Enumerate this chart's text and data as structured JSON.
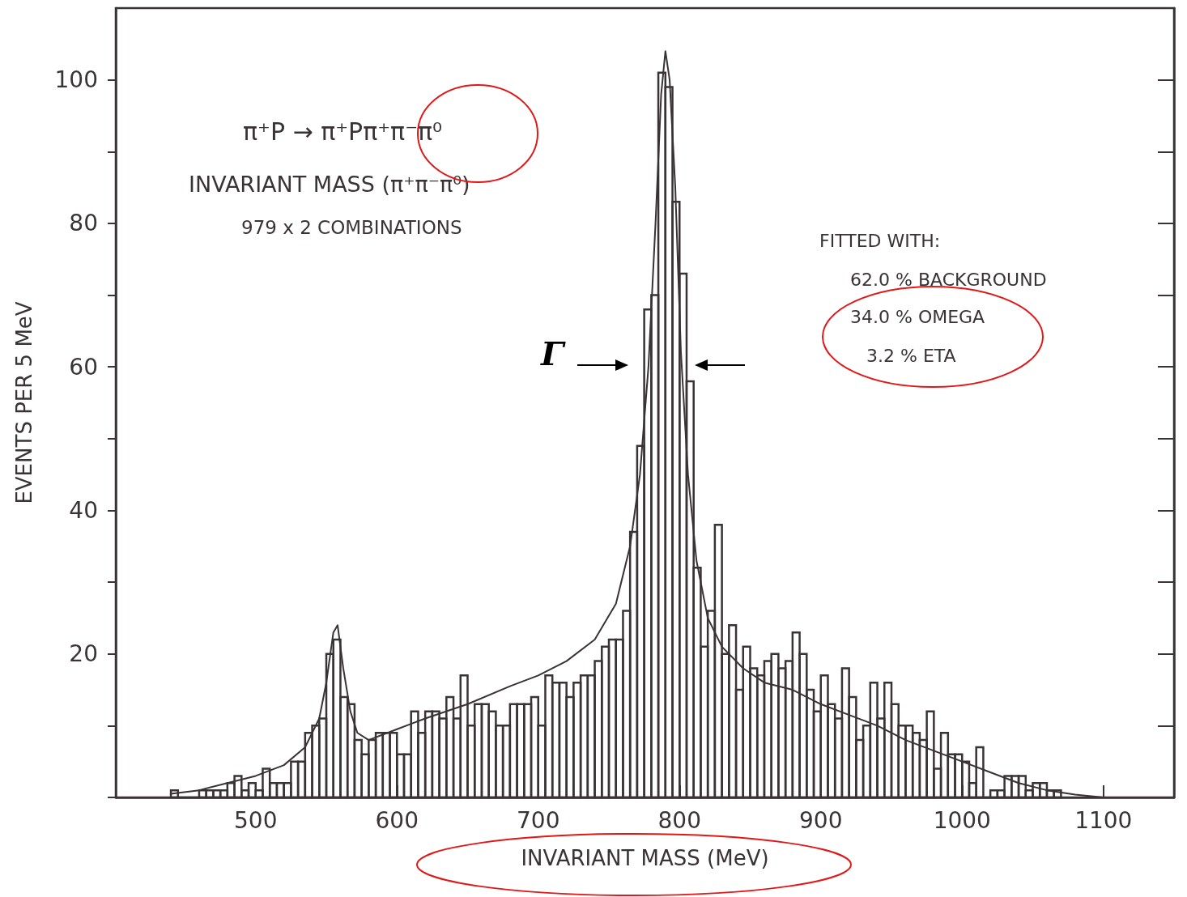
{
  "chart_data": {
    "type": "histogram",
    "xlabel": "INVARIANT MASS (MeV)",
    "ylabel": "EVENTS PER 5 MeV",
    "annotations": [
      "π⁺P → π⁺Pπ⁺π⁻π⁰",
      "INVARIANT MASS (π⁺π⁻π⁰)",
      "979 x 2 COMBINATIONS",
      "FITTED WITH:",
      "62.0 % BACKGROUND",
      "34.0 % OMEGA",
      "3.2 % ETA",
      "Γ"
    ],
    "xlim": [
      401,
      1150
    ],
    "xticks": [
      500,
      600,
      700,
      800,
      900,
      1000,
      1100
    ],
    "ylim": [
      0,
      110
    ],
    "yticks": [
      {
        "value": 0,
        "label": null
      },
      {
        "value": 10,
        "label": null
      },
      20,
      {
        "value": 30,
        "label": null
      },
      40,
      {
        "value": 50,
        "label": null
      },
      60,
      {
        "value": 70,
        "label": null
      },
      80,
      {
        "value": 90,
        "label": null
      },
      100
    ],
    "grid": false,
    "series": [
      {
        "color": "#3a3335",
        "bins": [
          440,
          445,
          450,
          455,
          460,
          465,
          470,
          475,
          480,
          485,
          490,
          495,
          500,
          505,
          510,
          515,
          520,
          525,
          530,
          535,
          540,
          545,
          550,
          555,
          560,
          565,
          570,
          575,
          580,
          585,
          590,
          595,
          600,
          605,
          610,
          615,
          620,
          625,
          630,
          635,
          640,
          645,
          650,
          655,
          660,
          665,
          670,
          675,
          680,
          685,
          690,
          695,
          700,
          705,
          710,
          715,
          720,
          725,
          730,
          735,
          740,
          745,
          750,
          755,
          760,
          765,
          770,
          775,
          780,
          785,
          790,
          795,
          800,
          805,
          810,
          815,
          820,
          825,
          830,
          835,
          840,
          845,
          850,
          855,
          860,
          865,
          870,
          875,
          880,
          885,
          890,
          895,
          900,
          905,
          910,
          915,
          920,
          925,
          930,
          935,
          940,
          945,
          950,
          955,
          960,
          965,
          970,
          975,
          980,
          985,
          990,
          995,
          1000,
          1005,
          1010,
          1015,
          1020,
          1025,
          1030,
          1035,
          1040,
          1045,
          1050,
          1055,
          1060,
          1065,
          1070
        ],
        "values": [
          1,
          0,
          0,
          0,
          1,
          1,
          1,
          1,
          2,
          3,
          1,
          2,
          1,
          4,
          2,
          2,
          2,
          5,
          5,
          9,
          10,
          11,
          20,
          22,
          14,
          13,
          8,
          6,
          8,
          9,
          9,
          9,
          6,
          6,
          12,
          9,
          12,
          12,
          11,
          14,
          11,
          17,
          10,
          13,
          13,
          12,
          10,
          10,
          13,
          13,
          13,
          14,
          10,
          17,
          16,
          16,
          14,
          16,
          17,
          17,
          19,
          21,
          22,
          22,
          26,
          37,
          49,
          68,
          70,
          101,
          99,
          83,
          73,
          58,
          32,
          21,
          26,
          38,
          20,
          24,
          15,
          21,
          18,
          17,
          19,
          20,
          18,
          19,
          23,
          20,
          15,
          12,
          17,
          13,
          11,
          18,
          14,
          8,
          10,
          16,
          11,
          16,
          13,
          10,
          10,
          9,
          8,
          12,
          4,
          9,
          6,
          6,
          5,
          2,
          7,
          0,
          1,
          1,
          3,
          3,
          3,
          1,
          2,
          2,
          1,
          1
        ]
      },
      {
        "type": "line",
        "color": "#3a3335",
        "marker": "none",
        "x": [
          440,
          460,
          480,
          500,
          520,
          535,
          545,
          550,
          555,
          558,
          562,
          567,
          572,
          580,
          600,
          620,
          650,
          680,
          700,
          720,
          740,
          755,
          765,
          772,
          778,
          783,
          787,
          790,
          793,
          797,
          801,
          806,
          812,
          820,
          830,
          845,
          860,
          880,
          900,
          920,
          940,
          960,
          980,
          1000,
          1020,
          1040,
          1060,
          1080,
          1100
        ],
        "values": [
          0.5,
          1,
          2,
          3,
          4.5,
          7,
          11,
          16,
          23,
          24,
          18,
          12,
          9,
          8,
          9.5,
          11,
          13,
          15.5,
          17,
          19,
          22,
          27,
          35,
          45,
          60,
          80,
          98,
          104,
          100,
          85,
          62,
          45,
          33,
          25,
          21,
          18,
          16,
          15,
          13,
          11.5,
          10,
          8,
          6.5,
          5,
          3.5,
          2,
          1,
          0.4,
          0
        ]
      }
    ]
  }
}
